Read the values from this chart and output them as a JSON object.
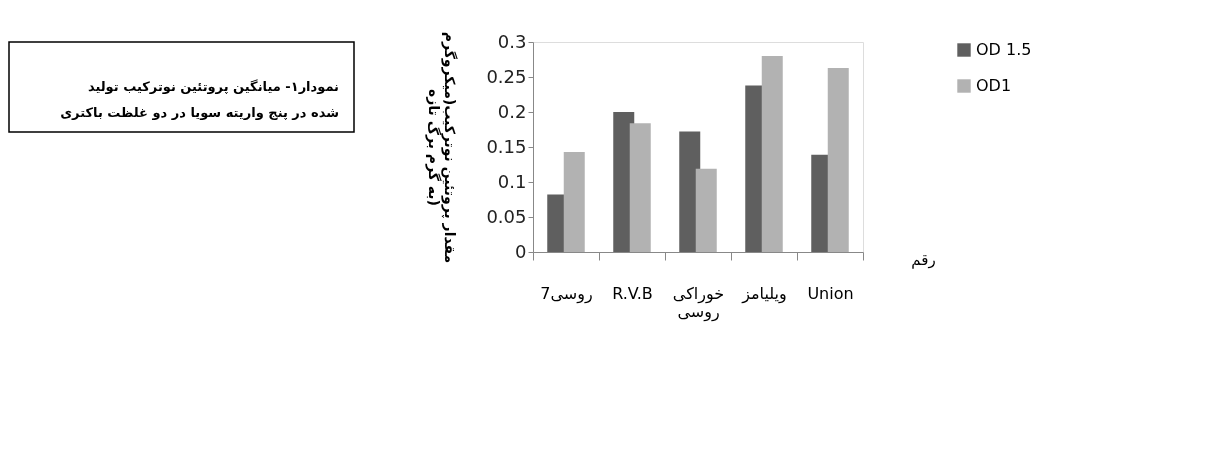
{
  "chart_data": {
    "type": "bar",
    "categories": [
      "روسی7",
      "R.V.B",
      "خوراکی روسی",
      "ویلیامز",
      "Union"
    ],
    "series": [
      {
        "name": "OD 1.5",
        "color": "#5f5f5f",
        "values": [
          0.082,
          0.2,
          0.172,
          0.238,
          0.139
        ]
      },
      {
        "name": "OD1",
        "color": "#b2b2b2",
        "values": [
          0.143,
          0.184,
          0.119,
          0.28,
          0.263
        ]
      }
    ],
    "xlabel": "رقم",
    "ylabel": "مقدار پروتئین نوترکیب(میکروگرم به گرم برگ تازه)",
    "ylim": [
      0,
      0.3
    ],
    "yticks": [
      0,
      0.05,
      0.1,
      0.15,
      0.2,
      0.25,
      0.3
    ],
    "grid": false,
    "legend": "right",
    "annotations": [
      "نمودار۱- میانگین پروتئین نوترکیب تولید شده در پنج واریته سویا در دو غلظت باکتری"
    ]
  }
}
